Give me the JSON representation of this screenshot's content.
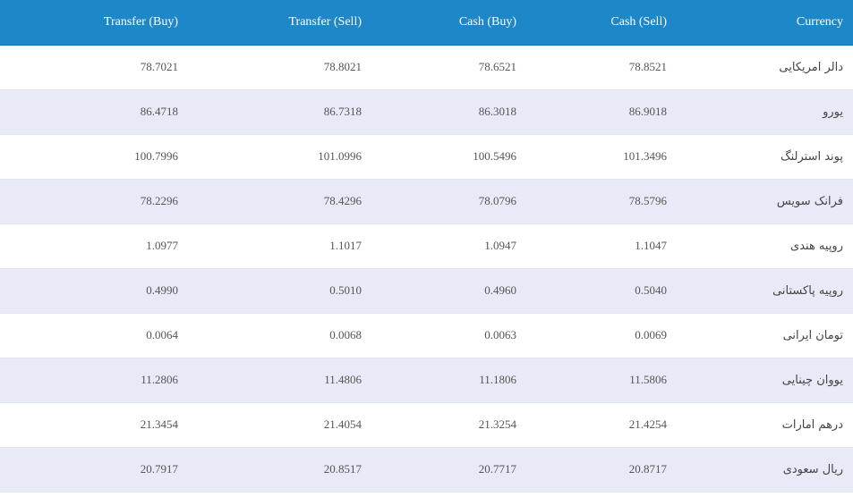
{
  "table": {
    "header": [
      "Currency",
      "Cash (Sell)",
      "Cash (Buy)",
      "Transfer (Sell)",
      "Transfer (Buy)"
    ],
    "rows": [
      [
        "دالر امریکایی",
        "78.8521",
        "78.6521",
        "78.8021",
        "78.7021"
      ],
      [
        "یورو",
        "86.9018",
        "86.3018",
        "86.7318",
        "86.4718"
      ],
      [
        "پوند استرلنگ",
        "101.3496",
        "100.5496",
        "101.0996",
        "100.7996"
      ],
      [
        "فرانک سویس",
        "78.5796",
        "78.0796",
        "78.4296",
        "78.2296"
      ],
      [
        "روپیه هندی",
        "1.1047",
        "1.0947",
        "1.1017",
        "1.0977"
      ],
      [
        "روپیه پاکستانی",
        "0.5040",
        "0.4960",
        "0.5010",
        "0.4990"
      ],
      [
        "تومان ایرانی",
        "0.0069",
        "0.0063",
        "0.0068",
        "0.0064"
      ],
      [
        "یووان چینایی",
        "11.5806",
        "11.1806",
        "11.4806",
        "11.2806"
      ],
      [
        "درهم امارات",
        "21.4254",
        "21.3254",
        "21.4054",
        "21.3454"
      ],
      [
        "ریال سعودی",
        "20.8717",
        "20.7717",
        "20.8517",
        "20.7917"
      ]
    ]
  }
}
